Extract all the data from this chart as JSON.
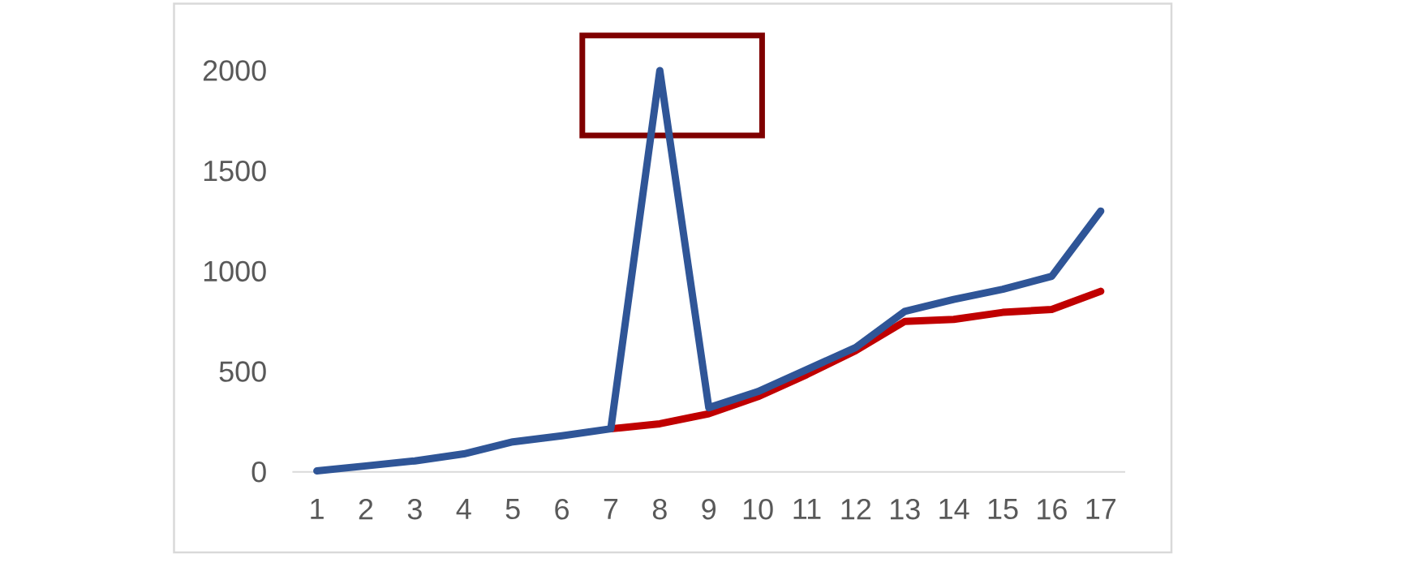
{
  "chart_data": {
    "type": "line",
    "categories": [
      "1",
      "2",
      "3",
      "4",
      "5",
      "6",
      "7",
      "8",
      "9",
      "10",
      "11",
      "12",
      "13",
      "14",
      "15",
      "16",
      "17"
    ],
    "series": [
      {
        "color": "#c00000",
        "values": [
          null,
          null,
          null,
          null,
          null,
          null,
          215,
          240,
          290,
          375,
          485,
          605,
          750,
          760,
          795,
          810,
          900
        ]
      },
      {
        "color": "#2f5597",
        "values": [
          5,
          30,
          55,
          90,
          150,
          180,
          215,
          2000,
          320,
          400,
          510,
          620,
          800,
          860,
          910,
          975,
          1300
        ]
      }
    ],
    "ylim": [
      0,
      2000
    ],
    "yticks": [
      0,
      500,
      1000,
      1500,
      2000
    ],
    "marker": "none",
    "line_style": "solid"
  }
}
